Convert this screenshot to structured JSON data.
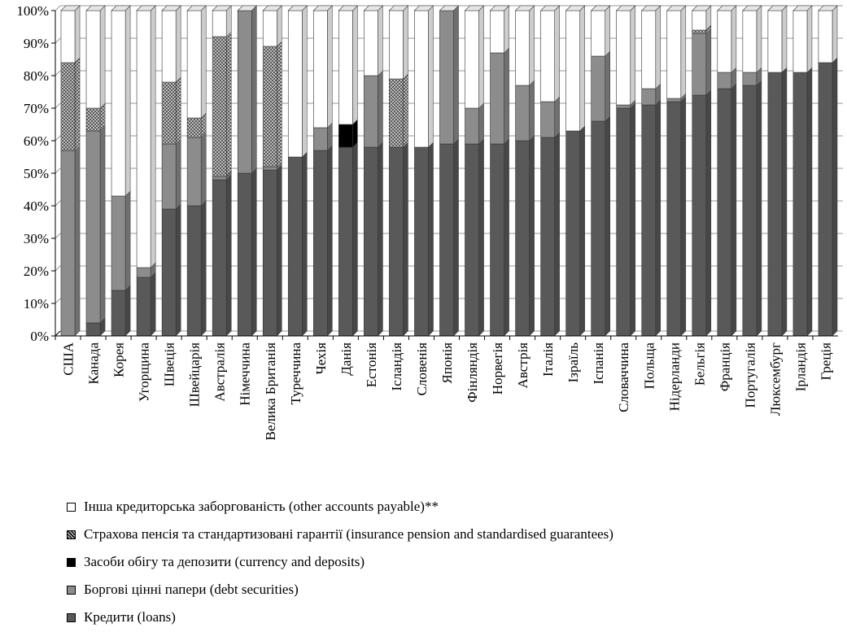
{
  "chart_data": {
    "type": "bar",
    "stacked": true,
    "percent": true,
    "ylim": [
      0,
      100
    ],
    "y_ticks": [
      "0%",
      "10%",
      "20%",
      "30%",
      "40%",
      "50%",
      "60%",
      "70%",
      "80%",
      "90%",
      "100%"
    ],
    "categories": [
      "США",
      "Канада",
      "Корея",
      "Угорщина",
      "Швеція",
      "Швейцарія",
      "Австралія",
      "Німеччина",
      "Велика Британія",
      "Туреччина",
      "Чехія",
      "Данія",
      "Естонія",
      "Ісландія",
      "Словенія",
      "Японія",
      "Фінляндія",
      "Норвегія",
      "Австрія",
      "Італія",
      "Ізраїль",
      "Іспанія",
      "Словаччина",
      "Польща",
      "Нідерланди",
      "Бельгія",
      "Франція",
      "Португалія",
      "Люксембург",
      "Ірландія",
      "Греція"
    ],
    "series": [
      {
        "name": "Кредити (loans)",
        "color": "#595959",
        "values": [
          0,
          4,
          14,
          18,
          39,
          40,
          48,
          50,
          51,
          55,
          57,
          58,
          58,
          58,
          58,
          59,
          59,
          59,
          60,
          61,
          63,
          66,
          70,
          71,
          72,
          74,
          76,
          77,
          81,
          81,
          84
        ]
      },
      {
        "name": "Боргові цінні папери (debt securities)",
        "color": "#8c8c8c",
        "values": [
          57,
          59,
          29,
          3,
          20,
          21,
          1,
          50,
          1,
          0,
          7,
          0,
          22,
          0,
          0,
          41,
          11,
          28,
          17,
          11,
          0,
          20,
          1,
          5,
          1,
          19,
          5,
          4,
          0,
          0,
          0
        ]
      },
      {
        "name": "Засоби обігу та депозити (currency and deposits)",
        "color": "#000000",
        "values": [
          0,
          0,
          0,
          0,
          0,
          0,
          0,
          0,
          0,
          0,
          0,
          7,
          0,
          0,
          0,
          0,
          0,
          0,
          0,
          0,
          0,
          0,
          0,
          0,
          0,
          0,
          0,
          0,
          0,
          0,
          0
        ]
      },
      {
        "name": "Страхова пенсія та стандартизовані гарантії (insurance pension and standardised guarantees)",
        "color": "#3a3a3a",
        "pattern": "dots",
        "values": [
          27,
          7,
          0,
          0,
          19,
          6,
          43,
          0,
          37,
          0,
          0,
          0,
          0,
          21,
          0,
          0,
          0,
          0,
          0,
          0,
          0,
          0,
          0,
          0,
          0,
          1,
          0,
          0,
          0,
          0,
          0
        ]
      },
      {
        "name": "Інша кредиторська заборгованість (other accounts payable)**",
        "color": "#ffffff",
        "values": [
          16,
          30,
          57,
          79,
          22,
          33,
          8,
          0,
          11,
          45,
          36,
          35,
          20,
          21,
          42,
          0,
          30,
          13,
          23,
          28,
          37,
          14,
          29,
          24,
          27,
          6,
          19,
          19,
          19,
          19,
          16
        ]
      }
    ],
    "legend_order": [
      4,
      3,
      2,
      1,
      0
    ],
    "legend_position": "bottom"
  }
}
